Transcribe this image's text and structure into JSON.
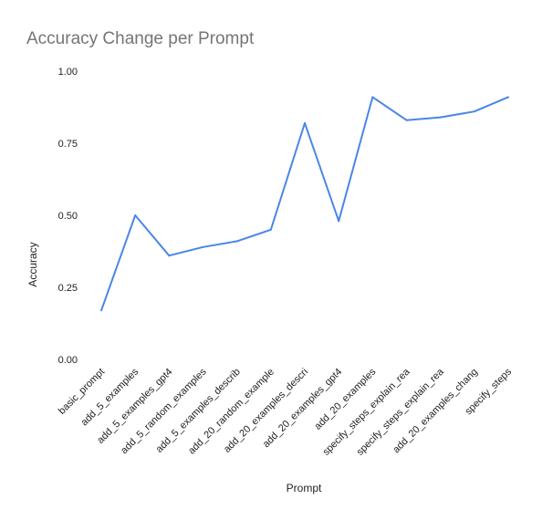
{
  "chart_data": {
    "type": "line",
    "title": "Accuracy Change per Prompt",
    "xlabel": "Prompt",
    "ylabel": "Accuracy",
    "ylim": [
      0,
      1
    ],
    "yticks": [
      "0.00",
      "0.25",
      "0.50",
      "0.75",
      "1.00"
    ],
    "grid": false,
    "legend": "none",
    "line_color": "#4a86e8",
    "categories": [
      "basic_prompt",
      "add_5_examples",
      "add_5_examples_gpt4",
      "add_5_random_examples",
      "add_5_examples_describ",
      "add_20_random_example",
      "add_20_examples_descri",
      "add_20_examples_gpt4",
      "add_20_examples",
      "specify_steps_explain_rea",
      "specify_steps_explain_rea",
      "add_20_examples_chang",
      "specify_steps"
    ],
    "series": [
      {
        "values": [
          0.17,
          0.5,
          0.36,
          0.39,
          0.41,
          0.45,
          0.82,
          0.48,
          0.91,
          0.83,
          0.84,
          0.86,
          0.91
        ]
      }
    ]
  }
}
